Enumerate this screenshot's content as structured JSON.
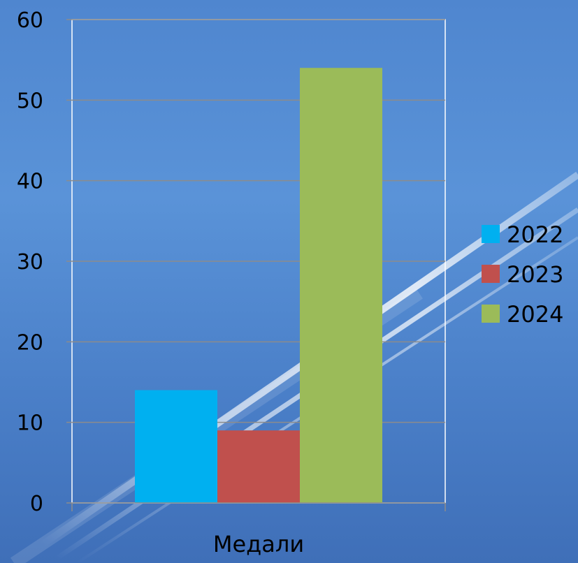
{
  "chart_data": {
    "type": "bar",
    "categories": [
      "Медали"
    ],
    "series": [
      {
        "name": "2022",
        "values": [
          14
        ],
        "color": "#00b0f0"
      },
      {
        "name": "2023",
        "values": [
          9
        ],
        "color": "#c0504d"
      },
      {
        "name": "2024",
        "values": [
          54
        ],
        "color": "#9bbb59"
      }
    ],
    "ylim": [
      0,
      60
    ],
    "yticks": [
      0,
      10,
      20,
      30,
      40,
      50,
      60
    ],
    "grid": true,
    "legend_position": "right",
    "title": "",
    "xlabel": "",
    "ylabel": ""
  },
  "colors": {
    "background": "#4f86cf",
    "gridline": "#8c8c8c",
    "plot_border": "#ffffff"
  }
}
